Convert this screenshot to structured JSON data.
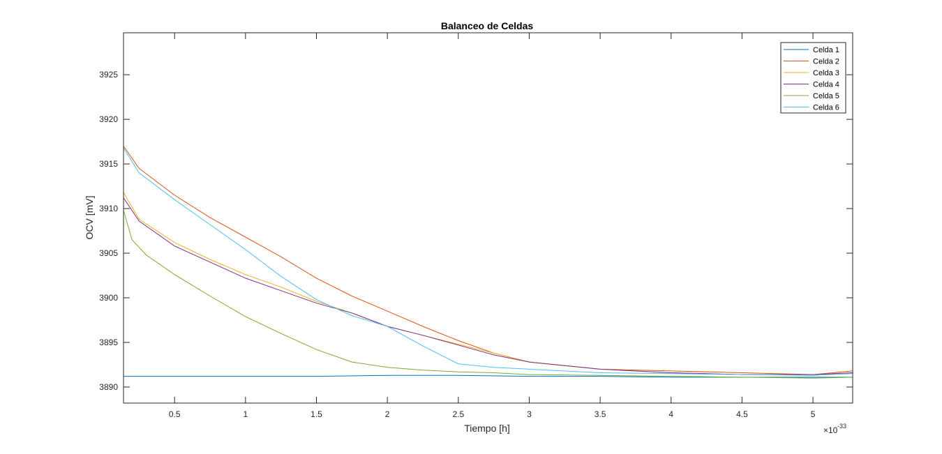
{
  "chart_data": {
    "type": "line",
    "title": "Balanceo de Celdas",
    "xlabel": "Tiempo [h]",
    "ylabel": "OCV [mV]",
    "x_exponent_base": "×10",
    "x_exponent_power": "-33",
    "xlim": [
      0.14,
      5.28
    ],
    "ylim": [
      3888.2,
      3929.7
    ],
    "xticks": [
      0.5,
      1,
      1.5,
      2,
      2.5,
      3,
      3.5,
      4,
      4.5,
      5
    ],
    "xtick_labels": [
      "0.5",
      "1",
      "1.5",
      "2",
      "2.5",
      "3",
      "3.5",
      "4",
      "4.5",
      "5"
    ],
    "yticks": [
      3890,
      3895,
      3900,
      3905,
      3910,
      3915,
      3920,
      3925
    ],
    "ytick_labels": [
      "3890",
      "3895",
      "3900",
      "3905",
      "3910",
      "3915",
      "3920",
      "3925"
    ],
    "grid": false,
    "legend_position": "top-right",
    "series": [
      {
        "name": "Celda 1",
        "color": "#0072BD",
        "x": [
          0.14,
          0.5,
          1,
          1.5,
          2,
          2.5,
          3,
          3.5,
          4,
          4.5,
          5,
          5.28
        ],
        "y": [
          3891.2,
          3891.2,
          3891.2,
          3891.2,
          3891.3,
          3891.3,
          3891.2,
          3891.2,
          3891.1,
          3891.1,
          3891.1,
          3891.1
        ]
      },
      {
        "name": "Celda 2",
        "color": "#D95319",
        "x": [
          0.14,
          0.25,
          0.5,
          0.75,
          1,
          1.25,
          1.5,
          1.75,
          2,
          2.25,
          2.5,
          2.75,
          3,
          3.5,
          4,
          4.5,
          5,
          5.28
        ],
        "y": [
          3917.0,
          3914.5,
          3911.5,
          3909.0,
          3906.8,
          3904.6,
          3902.2,
          3900.2,
          3898.5,
          3896.8,
          3895.2,
          3893.8,
          3892.8,
          3892.0,
          3891.8,
          3891.6,
          3891.4,
          3891.8
        ]
      },
      {
        "name": "Celda 3",
        "color": "#EDB120",
        "x": [
          0.14,
          0.25,
          0.5,
          0.75,
          1,
          1.25,
          1.5,
          1.75,
          2,
          2.25,
          2.5,
          2.75,
          3,
          3.5,
          4,
          4.5,
          5,
          5.28
        ],
        "y": [
          3911.8,
          3908.8,
          3906.2,
          3904.3,
          3902.6,
          3901.2,
          3899.6,
          3898.3,
          3896.8,
          3895.8,
          3894.8,
          3893.8,
          3892.8,
          3892.0,
          3891.6,
          3891.4,
          3891.4,
          3891.6
        ]
      },
      {
        "name": "Celda 4",
        "color": "#7E2F8E",
        "x": [
          0.14,
          0.25,
          0.5,
          0.75,
          1,
          1.25,
          1.5,
          1.75,
          2,
          2.25,
          2.5,
          2.75,
          3,
          3.5,
          4,
          4.5,
          5,
          5.28
        ],
        "y": [
          3911.2,
          3908.6,
          3905.8,
          3904.0,
          3902.2,
          3900.8,
          3899.4,
          3898.3,
          3896.8,
          3895.8,
          3894.7,
          3893.6,
          3892.8,
          3892.0,
          3891.6,
          3891.4,
          3891.4,
          3891.6
        ]
      },
      {
        "name": "Celda 5",
        "color": "#77AC30",
        "x": [
          0.14,
          0.2,
          0.3,
          0.5,
          0.75,
          1,
          1.25,
          1.5,
          1.75,
          2,
          2.25,
          2.5,
          2.75,
          3,
          3.5,
          4,
          4.5,
          5,
          5.28
        ],
        "y": [
          3909.8,
          3906.5,
          3904.8,
          3902.6,
          3900.2,
          3897.9,
          3896.0,
          3894.2,
          3892.8,
          3892.2,
          3891.9,
          3891.7,
          3891.6,
          3891.4,
          3891.3,
          3891.2,
          3891.1,
          3891.0,
          3891.1
        ]
      },
      {
        "name": "Celda 6",
        "color": "#4DBEEE",
        "x": [
          0.14,
          0.25,
          0.5,
          0.75,
          1,
          1.25,
          1.5,
          1.75,
          2,
          2.25,
          2.5,
          2.75,
          3,
          3.5,
          4,
          4.5,
          5,
          5.28
        ],
        "y": [
          3916.8,
          3914.0,
          3911.0,
          3908.2,
          3905.4,
          3902.4,
          3899.8,
          3898.0,
          3896.8,
          3894.6,
          3892.6,
          3892.2,
          3892.0,
          3891.6,
          3891.5,
          3891.4,
          3891.3,
          3891.5
        ]
      }
    ]
  }
}
